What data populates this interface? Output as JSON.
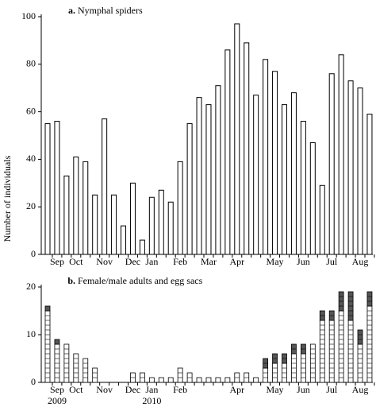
{
  "chart_data": [
    {
      "type": "bar",
      "panel_label": "a.",
      "title": "Nymphal spiders",
      "ylabel": "Number of individuals",
      "categories": [
        null,
        "Sep",
        null,
        "Oct",
        null,
        null,
        "Nov",
        null,
        null,
        "Dec",
        null,
        "Jan",
        null,
        null,
        "Feb",
        null,
        null,
        "Mar",
        null,
        null,
        "Apr",
        null,
        null,
        null,
        "May",
        null,
        null,
        "Jun",
        null,
        null,
        "Jul",
        null,
        null,
        "Aug",
        null
      ],
      "values": [
        55,
        56,
        33,
        41,
        39,
        25,
        57,
        25,
        12,
        30,
        6,
        24,
        27,
        22,
        39,
        55,
        66,
        63,
        71,
        86,
        97,
        89,
        67,
        82,
        77,
        63,
        68,
        56,
        47,
        29,
        76,
        84,
        73,
        70,
        59
      ],
      "color": "#ffffff",
      "ylim": [
        0,
        100
      ],
      "yticks": [
        0,
        20,
        40,
        60,
        80,
        100
      ]
    },
    {
      "type": "stacked-bar",
      "panel_label": "b.",
      "title": "Female/male adults and egg sacs",
      "categories": [
        null,
        "Sep",
        null,
        "Oct",
        null,
        null,
        "Nov",
        null,
        null,
        "Dec",
        null,
        "Jan",
        null,
        null,
        "Feb",
        null,
        null,
        null,
        null,
        null,
        "Apr",
        null,
        null,
        null,
        "May",
        null,
        null,
        "Jun",
        null,
        null,
        "Jul",
        null,
        null,
        "Aug",
        null
      ],
      "category_years": [
        null,
        "2009",
        null,
        null,
        null,
        null,
        null,
        null,
        null,
        null,
        null,
        "2010",
        null,
        null,
        null,
        null,
        null,
        null,
        null,
        null,
        null,
        null,
        null,
        null,
        null,
        null,
        null,
        null,
        null,
        null,
        null,
        null,
        null,
        null,
        null
      ],
      "series": [
        {
          "color": "#ffffff",
          "values": [
            15,
            8,
            8,
            6,
            5,
            3,
            0,
            0,
            0,
            2,
            2,
            1,
            1,
            1,
            3,
            2,
            1,
            1,
            1,
            1,
            2,
            2,
            1,
            3,
            4,
            4,
            6,
            6,
            8,
            13,
            13,
            15,
            13,
            8,
            16
          ]
        },
        {
          "color": "#555555",
          "values": [
            1,
            1,
            0,
            0,
            0,
            0,
            0,
            0,
            0,
            0,
            0,
            0,
            0,
            0,
            0,
            0,
            0,
            0,
            0,
            0,
            0,
            0,
            0,
            2,
            2,
            2,
            2,
            2,
            0,
            2,
            2,
            4,
            6,
            3,
            3
          ]
        }
      ],
      "ylim": [
        0,
        20
      ],
      "yticks": [
        0,
        10,
        20
      ]
    }
  ]
}
